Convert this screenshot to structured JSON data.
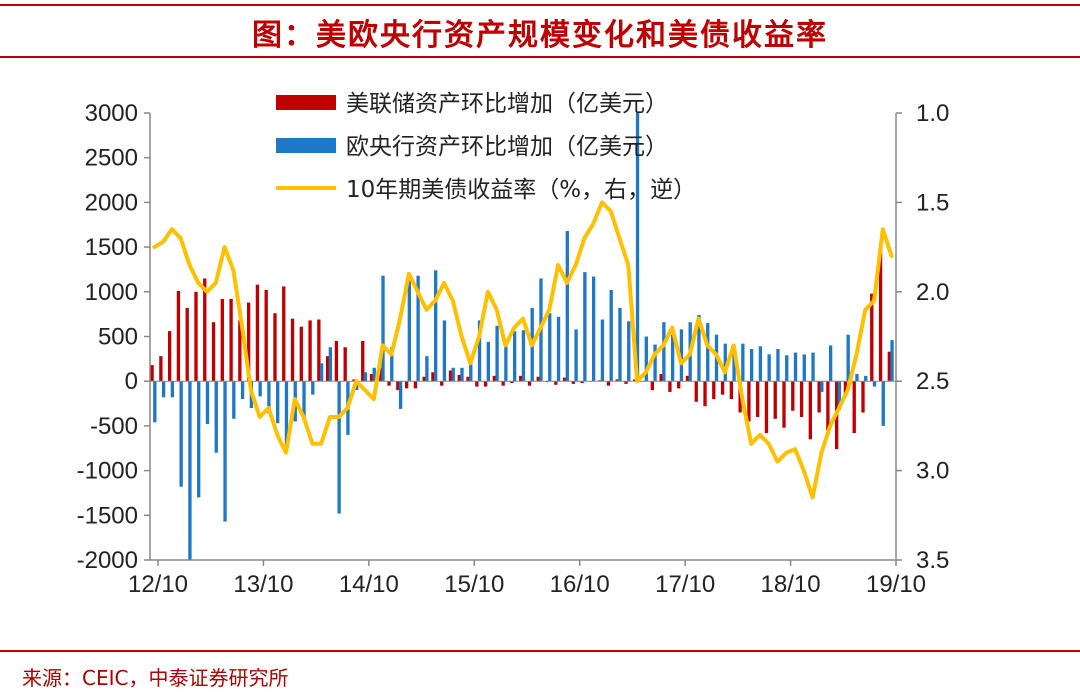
{
  "page_title": "图：美欧央行资产规模变化和美债收益率",
  "source_note": "来源：CEIC，中泰证券研究所",
  "colors": {
    "fed": "#c00000",
    "ecb": "#1f77c8",
    "yield": "#ffc000",
    "accent": "#c00000"
  },
  "chart_data": {
    "type": "bar+line",
    "title": "图：美欧央行资产规模变化和美债收益率",
    "x_tick_labels": [
      "12/10",
      "13/10",
      "14/10",
      "15/10",
      "16/10",
      "17/10",
      "18/10",
      "19/10"
    ],
    "left_axis": {
      "ticks": [
        3000,
        2500,
        2000,
        1500,
        1000,
        500,
        0,
        -500,
        -1000,
        -1500,
        -2000
      ],
      "ylim": [
        -2000,
        3000
      ],
      "unit": "亿美元"
    },
    "right_axis": {
      "ticks": [
        "1.0",
        "1.5",
        "2.0",
        "2.5",
        "3.0",
        "3.5"
      ],
      "ylim": [
        1.0,
        3.5
      ],
      "inverted": true,
      "unit": "%"
    },
    "series": [
      {
        "name": "美联储资产环比增加（亿美元）",
        "type": "bar",
        "values": [
          180,
          280,
          560,
          1010,
          820,
          1000,
          1150,
          660,
          920,
          920,
          680,
          880,
          1080,
          1020,
          760,
          1060,
          700,
          610,
          680,
          690,
          280,
          450,
          380,
          20,
          450,
          80,
          150,
          -50,
          -100,
          -80,
          -80,
          50,
          100,
          -50,
          120,
          70,
          50,
          -60,
          -60,
          60,
          -50,
          -20,
          60,
          -50,
          50,
          -10,
          -40,
          40,
          -30,
          -20,
          0,
          10,
          -50,
          20,
          -30,
          20,
          0,
          -100,
          80,
          -120,
          -80,
          60,
          -230,
          -280,
          -200,
          -150,
          -200,
          -350,
          -450,
          -400,
          -580,
          -420,
          -520,
          -330,
          -400,
          -650,
          -350,
          -550,
          -760,
          -150,
          -580,
          -350,
          980,
          1520,
          330
        ]
      },
      {
        "name": "欧央行资产环比增加（亿美元）",
        "type": "bar",
        "values": [
          -460,
          -180,
          -180,
          -1180,
          -2000,
          -1300,
          -480,
          -800,
          -1570,
          -420,
          -200,
          -300,
          -170,
          -360,
          -470,
          -780,
          -450,
          -400,
          -150,
          200,
          380,
          -1480,
          -600,
          -100,
          100,
          150,
          1180,
          380,
          -310,
          1150,
          1180,
          280,
          1240,
          680,
          150,
          150,
          240,
          680,
          440,
          620,
          460,
          560,
          570,
          820,
          1150,
          760,
          720,
          1680,
          580,
          1220,
          1170,
          690,
          1020,
          820,
          670,
          3000,
          500,
          410,
          660,
          520,
          580,
          660,
          740,
          650,
          520,
          420,
          400,
          420,
          360,
          390,
          300,
          360,
          290,
          320,
          300,
          320,
          -120,
          400,
          -320,
          520,
          80,
          60,
          -60,
          -500,
          460
        ]
      },
      {
        "name": "10年期美债收益率（%，右，逆）",
        "type": "line",
        "values": [
          1.75,
          1.72,
          1.65,
          1.7,
          1.85,
          1.95,
          2.0,
          1.95,
          1.75,
          1.88,
          2.2,
          2.55,
          2.7,
          2.65,
          2.8,
          2.9,
          2.6,
          2.7,
          2.85,
          2.85,
          2.7,
          2.7,
          2.65,
          2.5,
          2.55,
          2.6,
          2.3,
          2.35,
          2.15,
          1.9,
          2.0,
          2.1,
          2.05,
          1.95,
          2.05,
          2.25,
          2.4,
          2.25,
          2.0,
          2.1,
          2.3,
          2.2,
          2.15,
          2.3,
          2.2,
          2.1,
          1.85,
          1.95,
          1.85,
          1.7,
          1.62,
          1.5,
          1.55,
          1.7,
          1.85,
          2.5,
          2.45,
          2.35,
          2.3,
          2.2,
          2.4,
          2.35,
          2.15,
          2.3,
          2.35,
          2.45,
          2.3,
          2.6,
          2.85,
          2.8,
          2.85,
          2.95,
          2.9,
          2.88,
          3.0,
          3.15,
          2.9,
          2.75,
          2.65,
          2.55,
          2.35,
          2.1,
          2.05,
          1.65,
          1.8
        ]
      }
    ],
    "legend_position": "top-center"
  }
}
